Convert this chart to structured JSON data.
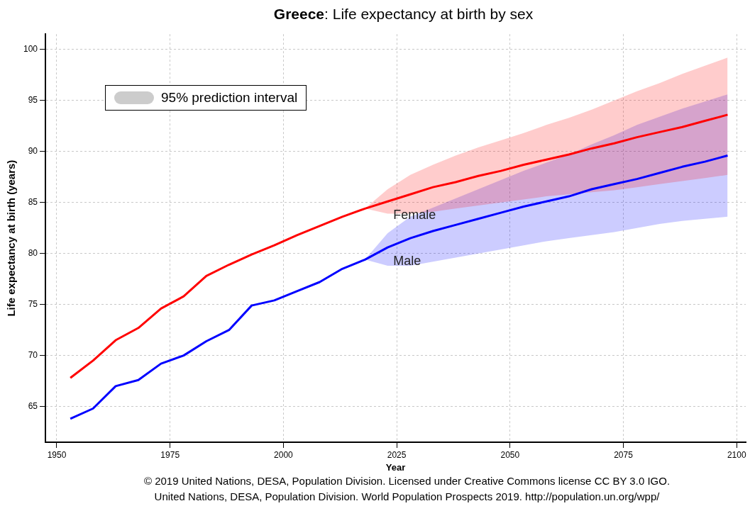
{
  "chart_data": {
    "type": "line",
    "title": "Greece: Life expectancy at birth by sex",
    "xlabel": "Year",
    "ylabel": "Life expectancy at birth (years)",
    "x": [
      1953,
      1958,
      1963,
      1968,
      1973,
      1978,
      1983,
      1988,
      1993,
      1998,
      2003,
      2008,
      2013,
      2018,
      2023,
      2028,
      2033,
      2038,
      2043,
      2048,
      2053,
      2058,
      2063,
      2068,
      2073,
      2078,
      2083,
      2088,
      2093,
      2098
    ],
    "series": [
      {
        "name": "Female",
        "color": "#ff0000",
        "values": [
          67.8,
          69.5,
          71.5,
          72.7,
          74.6,
          75.8,
          77.8,
          78.9,
          79.9,
          80.8,
          81.8,
          82.7,
          83.6,
          84.4,
          85.1,
          85.8,
          86.5,
          87.0,
          87.6,
          88.1,
          88.7,
          89.2,
          89.7,
          90.3,
          90.8,
          91.4,
          91.9,
          92.4,
          93.0,
          93.6
        ],
        "lower": [
          null,
          null,
          null,
          null,
          null,
          null,
          null,
          null,
          null,
          null,
          null,
          null,
          null,
          84.4,
          83.9,
          83.9,
          84.1,
          84.4,
          84.7,
          85.0,
          85.3,
          85.6,
          85.8,
          86.0,
          86.2,
          86.5,
          86.8,
          87.1,
          87.4,
          87.7
        ],
        "upper": [
          null,
          null,
          null,
          null,
          null,
          null,
          null,
          null,
          null,
          null,
          null,
          null,
          null,
          84.4,
          86.3,
          87.7,
          88.7,
          89.6,
          90.4,
          91.1,
          91.8,
          92.6,
          93.3,
          94.1,
          95.0,
          95.9,
          96.7,
          97.6,
          98.4,
          99.2
        ]
      },
      {
        "name": "Male",
        "color": "#0000ff",
        "values": [
          63.8,
          64.8,
          67.0,
          67.6,
          69.2,
          70.0,
          71.4,
          72.5,
          74.9,
          75.4,
          76.3,
          77.2,
          78.5,
          79.4,
          80.6,
          81.5,
          82.2,
          82.8,
          83.4,
          84.0,
          84.6,
          85.1,
          85.6,
          86.3,
          86.8,
          87.3,
          87.9,
          88.5,
          89.0,
          89.6
        ],
        "lower": [
          null,
          null,
          null,
          null,
          null,
          null,
          null,
          null,
          null,
          null,
          null,
          null,
          null,
          79.4,
          78.8,
          78.8,
          79.2,
          79.6,
          80.0,
          80.4,
          80.8,
          81.2,
          81.5,
          81.8,
          82.1,
          82.5,
          82.9,
          83.2,
          83.4,
          83.6
        ],
        "upper": [
          null,
          null,
          null,
          null,
          null,
          null,
          null,
          null,
          null,
          null,
          null,
          null,
          null,
          79.4,
          82.0,
          83.6,
          84.5,
          85.4,
          86.3,
          87.2,
          88.1,
          88.9,
          89.7,
          90.7,
          91.6,
          92.6,
          93.4,
          94.2,
          94.9,
          95.6
        ]
      }
    ],
    "legend_title": "95% prediction interval",
    "legend": "top left",
    "xlim": [
      1947.5,
      2102
    ],
    "xticks": [
      1950,
      1975,
      2000,
      2025,
      2050,
      2075,
      2100
    ],
    "ylim": [
      61.5,
      101.5
    ],
    "yticks": [
      65,
      70,
      75,
      80,
      85,
      90,
      95,
      100
    ],
    "grid": true,
    "line_style": "solid",
    "annotations": [
      "© 2019 United Nations, DESA, Population Division. Licensed under Creative Commons license CC BY 3.0 IGO.",
      "United Nations, DESA, Population Division. World Population Prospects 2019. http://population.un.org/wpp/"
    ]
  }
}
